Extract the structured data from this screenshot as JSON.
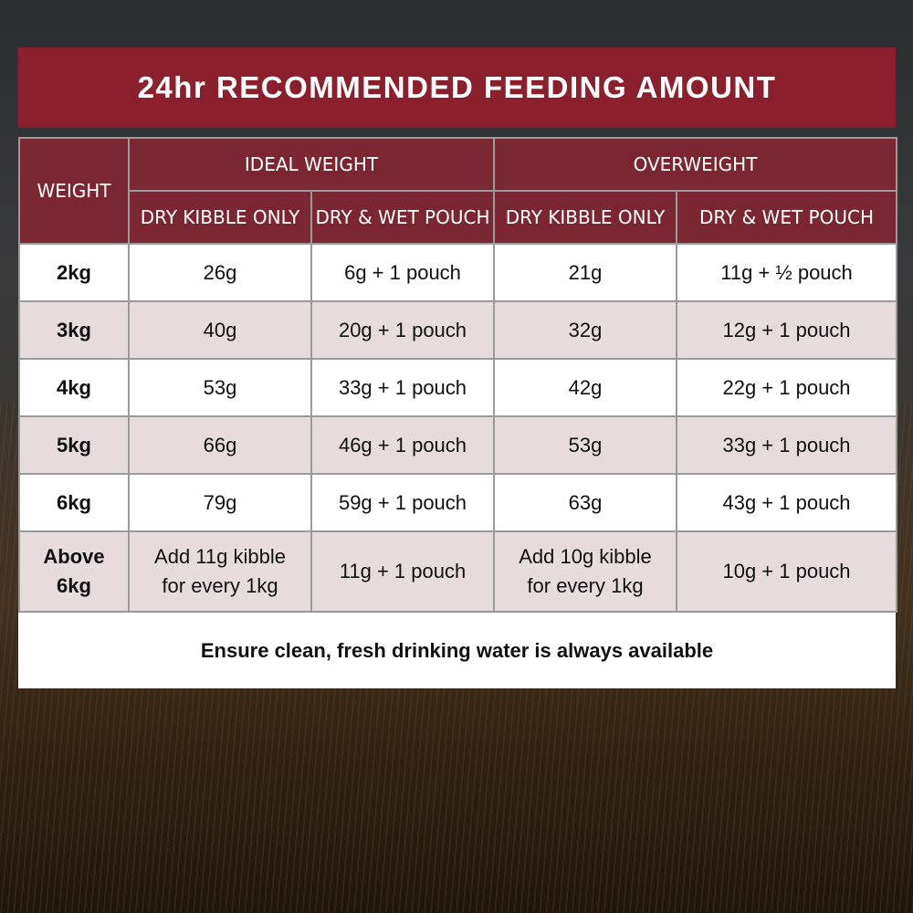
{
  "title": "24hr RECOMMENDED FEEDING AMOUNT",
  "header": {
    "weight": "WEIGHT",
    "ideal_weight": "IDEAL WEIGHT",
    "overweight": "OVERWEIGHT",
    "dry_kibble_only": "DRY KIBBLE ONLY",
    "dry_wet_pouch": "DRY & WET POUCH"
  },
  "rows": [
    {
      "weight": "2kg",
      "ideal_dry": "26g",
      "ideal_wet": "6g + 1 pouch",
      "over_dry": "21g",
      "over_wet": "11g + ½ pouch"
    },
    {
      "weight": "3kg",
      "ideal_dry": "40g",
      "ideal_wet": "20g + 1 pouch",
      "over_dry": "32g",
      "over_wet": "12g + 1 pouch"
    },
    {
      "weight": "4kg",
      "ideal_dry": "53g",
      "ideal_wet": "33g + 1 pouch",
      "over_dry": "42g",
      "over_wet": "22g + 1 pouch"
    },
    {
      "weight": "5kg",
      "ideal_dry": "66g",
      "ideal_wet": "46g + 1 pouch",
      "over_dry": "53g",
      "over_wet": "33g + 1 pouch"
    },
    {
      "weight": "6kg",
      "ideal_dry": "79g",
      "ideal_wet": "59g + 1 pouch",
      "over_dry": "63g",
      "over_wet": "43g + 1 pouch"
    }
  ],
  "last_row": {
    "weight_line1": "Above",
    "weight_line2": "6kg",
    "ideal_dry_line1": "Add 11g kibble",
    "ideal_dry_line2": "for every 1kg",
    "ideal_wet": "11g + 1 pouch",
    "over_dry_line1": "Add 10g kibble",
    "over_dry_line2": "for every 1kg",
    "over_wet": "10g + 1 pouch"
  },
  "footer": "Ensure clean, fresh drinking water is always available",
  "colors": {
    "title_bg": "#8b1f2e",
    "header_bg": "#7a2633",
    "alt_row": "#e6dcdc"
  }
}
